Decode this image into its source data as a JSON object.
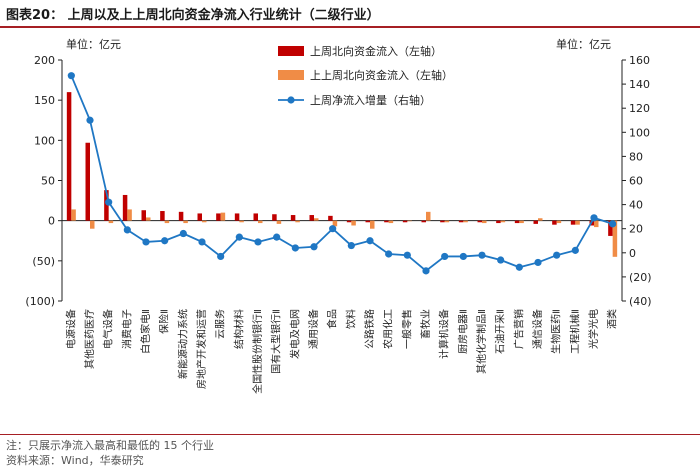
{
  "header": {
    "title": "图表20：  上周以及上上周北向资金净流入行业统计（二级行业）"
  },
  "footer": {
    "note": "注：只展示净流入最高和最低的 15 个行业",
    "source": "资料来源：Wind，华泰研究"
  },
  "colors": {
    "last_week": "#c00000",
    "prev_week": "#f08c46",
    "net_change": "#1f77c4",
    "title_rule": "#a61f24"
  },
  "chart_data": {
    "type": "bar",
    "categories": [
      "电源设备",
      "其他医药医疗",
      "电气设备",
      "消费电子",
      "白色家电Ⅱ",
      "保险Ⅱ",
      "新能源动力系统",
      "房地产开发和运营",
      "云服务",
      "结构材料",
      "全国性股份制银行Ⅱ",
      "国有大型银行Ⅱ",
      "发电及电网",
      "通用设备",
      "食品",
      "饮料",
      "公路铁路",
      "农用化工",
      "一般零售",
      "畜牧业",
      "计算机设备",
      "厨房电器Ⅱ",
      "其他化学制品Ⅱ",
      "石油开采Ⅱ",
      "广告营销",
      "通信设备",
      "生物医药Ⅱ",
      "工程机械Ⅱ",
      "光学光电",
      "酒类"
    ],
    "series": [
      {
        "name": "上周北向资金流入（左轴）",
        "type": "bar",
        "axis": "left",
        "values": [
          160,
          97,
          38,
          32,
          13,
          12,
          11,
          9,
          9,
          9,
          9,
          8,
          7,
          7,
          6,
          -2,
          -2,
          -2,
          -2,
          -2,
          -2,
          -2,
          -2,
          -3,
          -3,
          -4,
          -5,
          -5,
          -6,
          -19
        ]
      },
      {
        "name": "上上周北向资金流入（左轴）",
        "type": "bar",
        "axis": "left",
        "values": [
          14,
          -10,
          -3,
          14,
          4,
          -3,
          -3,
          -2,
          10,
          -2,
          -3,
          -4,
          -2,
          3,
          -7,
          -6,
          -10,
          -3,
          0,
          11,
          -2,
          -2,
          -3,
          -2,
          -3,
          3,
          -3,
          -5,
          -8,
          -45
        ]
      },
      {
        "name": "上周净流入增量（右轴）",
        "type": "line",
        "axis": "right",
        "values": [
          147,
          110,
          42,
          19,
          9,
          10,
          16,
          9,
          -3,
          13,
          9,
          13,
          4,
          5,
          20,
          6,
          10,
          -1,
          -2,
          -15,
          -3,
          -3,
          -2,
          -6,
          -12,
          -8,
          -2,
          2,
          29,
          24
        ]
      }
    ],
    "left_axis": {
      "unit_label": "单位：亿元",
      "min": -100,
      "max": 200,
      "ticks": [
        "(100)",
        "(50)",
        "0",
        "50",
        "100",
        "150",
        "200"
      ],
      "values": [
        -100,
        -50,
        0,
        50,
        100,
        150,
        200
      ]
    },
    "right_axis": {
      "unit_label": "单位：亿元",
      "min": -40,
      "max": 160,
      "ticks": [
        "(40)",
        "(20)",
        "0",
        "20",
        "40",
        "60",
        "80",
        "100",
        "120",
        "140",
        "160"
      ],
      "values": [
        -40,
        -20,
        0,
        20,
        40,
        60,
        80,
        100,
        120,
        140,
        160
      ]
    },
    "legend_position": "top-right",
    "grid": false
  }
}
